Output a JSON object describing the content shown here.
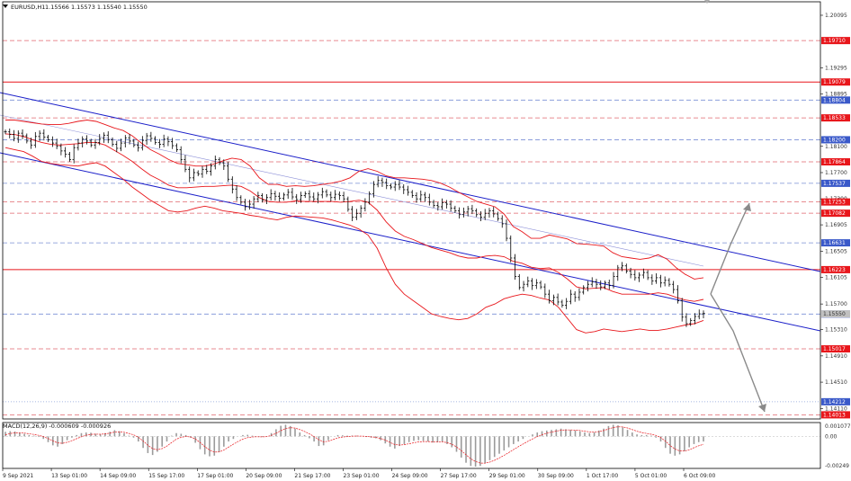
{
  "chart_header": {
    "symbol_label": "EURUSD,H1",
    "ohlc_text": "1.15566 1.15573 1.15540 1.15550"
  },
  "macd_header": {
    "label": "MACD(12,26,9) -0.000609 -0.000926"
  },
  "colors": {
    "background": "#ffffff",
    "candle": "#000000",
    "bollinger": "#e8161b",
    "channel": "#1b1fc9",
    "resistance_dash": "#e0666d",
    "support_dash": "#7a8fd6",
    "solid_level": "#e8161b",
    "projection_arrow": "#8a8a8a",
    "macd_hist": "#9b9b9b",
    "macd_signal": "#e8161b"
  },
  "chart_data": [
    {
      "type": "candlestick",
      "title": "EURUSD,H1",
      "ylim": [
        1.1395,
        1.203
      ],
      "y_ticks": [
        "1.20095",
        "1.19710",
        "1.19295",
        "1.19079",
        "1.18895",
        "1.18533",
        "1.18200",
        "1.18100",
        "1.17864",
        "1.17700",
        "1.17537",
        "1.17300",
        "1.17253",
        "1.17082",
        "1.16905",
        "1.16631",
        "1.16505",
        "1.16223",
        "1.16105",
        "1.15700",
        "1.15547",
        "1.15310",
        "1.15017",
        "1.14910",
        "1.14510",
        "1.14212",
        "1.14110",
        "1.14013"
      ],
      "x_tick_labels": [
        "9 Sep 2021",
        "13 Sep 01:00",
        "14 Sep 09:00",
        "15 Sep 17:00",
        "17 Sep 01:00",
        "20 Sep 09:00",
        "21 Sep 17:00",
        "23 Sep 01:00",
        "24 Sep 09:00",
        "27 Sep 17:00",
        "29 Sep 01:00",
        "30 Sep 09:00",
        "1 Oct 17:00",
        "5 Oct 01:00",
        "6 Oct 09:00"
      ],
      "series_close": [
        1.1832,
        1.1828,
        1.1822,
        1.183,
        1.1826,
        1.1818,
        1.1812,
        1.1825,
        1.183,
        1.1824,
        1.182,
        1.1815,
        1.181,
        1.1803,
        1.1798,
        1.179,
        1.1808,
        1.1815,
        1.1821,
        1.1818,
        1.1812,
        1.1816,
        1.1822,
        1.1827,
        1.182,
        1.1813,
        1.1807,
        1.1815,
        1.1823,
        1.1818,
        1.1812,
        1.1808,
        1.1819,
        1.1826,
        1.1822,
        1.1816,
        1.1813,
        1.1821,
        1.1817,
        1.1811,
        1.1805,
        1.179,
        1.1775,
        1.1762,
        1.177,
        1.1768,
        1.1775,
        1.1772,
        1.178,
        1.179,
        1.1785,
        1.178,
        1.176,
        1.1745,
        1.1732,
        1.1725,
        1.1718,
        1.1722,
        1.173,
        1.1735,
        1.1728,
        1.1732,
        1.1738,
        1.1734,
        1.1731,
        1.1736,
        1.174,
        1.1733,
        1.1729,
        1.1735,
        1.1738,
        1.1733,
        1.173,
        1.1736,
        1.1741,
        1.1736,
        1.1732,
        1.1737,
        1.1735,
        1.173,
        1.1714,
        1.1702,
        1.1708,
        1.1716,
        1.1725,
        1.1738,
        1.1752,
        1.1758,
        1.1755,
        1.175,
        1.1748,
        1.1752,
        1.1748,
        1.1744,
        1.174,
        1.1735,
        1.173,
        1.1736,
        1.1732,
        1.1725,
        1.172,
        1.1718,
        1.1724,
        1.1722,
        1.1716,
        1.1712,
        1.1706,
        1.171,
        1.1715,
        1.1712,
        1.1706,
        1.1702,
        1.1708,
        1.1712,
        1.1707,
        1.17,
        1.1692,
        1.167,
        1.164,
        1.1612,
        1.1595,
        1.16,
        1.1605,
        1.1598,
        1.1602,
        1.1596,
        1.1585,
        1.1575,
        1.158,
        1.1573,
        1.1568,
        1.1574,
        1.1585,
        1.158,
        1.1588,
        1.1595,
        1.16,
        1.1604,
        1.16,
        1.1596,
        1.1602,
        1.1598,
        1.1612,
        1.1625,
        1.1628,
        1.162,
        1.1615,
        1.161,
        1.1614,
        1.1618,
        1.161,
        1.1605,
        1.161,
        1.1602,
        1.1606,
        1.16,
        1.1592,
        1.1575,
        1.155,
        1.154,
        1.1545,
        1.1551,
        1.1555,
        1.1556
      ],
      "bollinger_upper": [
        1.185,
        1.185,
        1.1848,
        1.1846,
        1.1844,
        1.1843,
        1.1843,
        1.1845,
        1.1848,
        1.185,
        1.1848,
        1.1843,
        1.1838,
        1.1834,
        1.1826,
        1.1815,
        1.1805,
        1.1798,
        1.179,
        1.1784,
        1.1782,
        1.178,
        1.178,
        1.1783,
        1.1788,
        1.1792,
        1.179,
        1.178,
        1.1762,
        1.1752,
        1.1752,
        1.1749,
        1.175,
        1.1749,
        1.175,
        1.1752,
        1.1754,
        1.1757,
        1.1762,
        1.1772,
        1.1776,
        1.1772,
        1.1765,
        1.1762,
        1.1762,
        1.1761,
        1.176,
        1.1758,
        1.1754,
        1.1748,
        1.174,
        1.1733,
        1.1726,
        1.1722,
        1.1718,
        1.1707,
        1.1688,
        1.168,
        1.167,
        1.167,
        1.1675,
        1.1672,
        1.1669,
        1.1662,
        1.1661,
        1.166,
        1.1658,
        1.1648,
        1.1642,
        1.164,
        1.1638,
        1.164,
        1.1645,
        1.1638,
        1.1625,
        1.1615,
        1.1608,
        1.161
      ],
      "bollinger_lower": [
        1.1808,
        1.1805,
        1.1802,
        1.1795,
        1.1787,
        1.1784,
        1.1782,
        1.1781,
        1.178,
        1.1783,
        1.1785,
        1.178,
        1.177,
        1.176,
        1.1748,
        1.1738,
        1.1728,
        1.172,
        1.1712,
        1.171,
        1.1712,
        1.1716,
        1.1719,
        1.1716,
        1.1712,
        1.171,
        1.1708,
        1.1705,
        1.1703,
        1.17,
        1.1698,
        1.1702,
        1.1704,
        1.1703,
        1.1702,
        1.1701,
        1.1698,
        1.1694,
        1.169,
        1.1684,
        1.1675,
        1.1655,
        1.1625,
        1.16,
        1.1585,
        1.1575,
        1.1565,
        1.1555,
        1.1551,
        1.1548,
        1.1546,
        1.1548,
        1.1555,
        1.1565,
        1.157,
        1.1578,
        1.1582,
        1.1585,
        1.1583,
        1.1579,
        1.1576,
        1.1565,
        1.1548,
        1.1531,
        1.1526,
        1.1528,
        1.1532,
        1.153,
        1.1528,
        1.153,
        1.1532,
        1.153,
        1.153,
        1.1532,
        1.1535,
        1.1538,
        1.154,
        1.1545
      ],
      "bollinger_mid": [
        1.1829,
        1.1828,
        1.1825,
        1.182,
        1.1816,
        1.1813,
        1.1812,
        1.1813,
        1.1814,
        1.1816,
        1.1816,
        1.1812,
        1.1804,
        1.1796,
        1.1787,
        1.1776,
        1.1766,
        1.1759,
        1.1751,
        1.1747,
        1.1747,
        1.1748,
        1.1749,
        1.1749,
        1.175,
        1.1751,
        1.1749,
        1.1742,
        1.1732,
        1.1726,
        1.1725,
        1.1725,
        1.1727,
        1.1726,
        1.1726,
        1.1726,
        1.1726,
        1.1725,
        1.1726,
        1.1728,
        1.1725,
        1.1713,
        1.1695,
        1.1681,
        1.1673,
        1.1668,
        1.1662,
        1.1656,
        1.1652,
        1.1648,
        1.1643,
        1.164,
        1.164,
        1.1643,
        1.1644,
        1.1642,
        1.1635,
        1.1632,
        1.1626,
        1.1624,
        1.1625,
        1.1618,
        1.1608,
        1.1596,
        1.1593,
        1.1594,
        1.1595,
        1.1589,
        1.1585,
        1.1585,
        1.1585,
        1.1585,
        1.1587,
        1.1585,
        1.158,
        1.1576,
        1.1574,
        1.1577
      ],
      "levels": [
        {
          "value": 1.1971,
          "label": "1.19710",
          "style": "red-dash"
        },
        {
          "value": 1.19079,
          "label": "1.19079",
          "style": "red-solid"
        },
        {
          "value": 1.18804,
          "label": "1.18804",
          "style": "blue-dash"
        },
        {
          "value": 1.18533,
          "label": "1.18533",
          "style": "red-dash"
        },
        {
          "value": 1.182,
          "label": "1.18200",
          "style": "blue-dash"
        },
        {
          "value": 1.17864,
          "label": "1.17864",
          "style": "red-dash"
        },
        {
          "value": 1.17537,
          "label": "1.17537",
          "style": "blue-dash"
        },
        {
          "value": 1.17253,
          "label": "1.17253",
          "style": "red-dash"
        },
        {
          "value": 1.17082,
          "label": "1.17082",
          "style": "red-dash"
        },
        {
          "value": 1.16631,
          "label": "1.16631",
          "style": "blue-dash"
        },
        {
          "value": 1.16223,
          "label": "1.16223",
          "style": "red-solid"
        },
        {
          "value": 1.15547,
          "label": "1.15547",
          "style": "blue-dash"
        },
        {
          "value": 1.15017,
          "label": "1.15017",
          "style": "red-dash"
        },
        {
          "value": 1.14212,
          "label": "1.14212",
          "style": "blue-dot"
        },
        {
          "value": 1.14013,
          "label": "1.14013",
          "style": "red-dash"
        }
      ],
      "current_price": 1.1555
    },
    {
      "type": "bar",
      "title": "MACD(12,26,9)",
      "ylim": [
        -0.00249,
        0.00107
      ],
      "y_ticks": [
        "0.001077",
        "0.00",
        "-0.00249"
      ],
      "histogram": [
        0.00035,
        0.0004,
        0.00038,
        0.0003,
        0.0002,
        0.0001,
        5e-05,
        -5e-05,
        -0.0002,
        -0.00045,
        -0.0007,
        -0.0008,
        -0.0006,
        -0.0003,
        -0.0001,
        0.0001,
        0.00025,
        0.0003,
        0.00028,
        0.0002,
        0.00015,
        0.00025,
        0.00035,
        0.00048,
        0.0004,
        0.00025,
        5e-05,
        -0.0001,
        -0.0004,
        -0.0009,
        -0.0013,
        -0.00145,
        -0.0012,
        -0.0008,
        -0.0004,
        5e-05,
        0.00025,
        0.0002,
        0.0001,
        -0.0001,
        -0.0005,
        -0.001,
        -0.0014,
        -0.00155,
        -0.0015,
        -0.0012,
        -0.0008,
        -0.0004,
        -0.0002,
        0.0,
        0.0001,
        0.00012,
        5e-05,
        0.0,
        -5e-05,
        0.0,
        0.00025,
        0.00055,
        0.00082,
        0.0009,
        0.0008,
        0.0006,
        0.0003,
        0.0001,
        -0.00015,
        -0.0004,
        -0.00075,
        -0.0007,
        -0.0003,
        0.0,
        0.0001,
        8e-05,
        5e-05,
        6e-05,
        5e-05,
        0.0,
        -5e-05,
        -0.0001,
        -0.00015,
        -0.0003,
        -0.00055,
        -0.0008,
        -0.00095,
        -0.00075,
        -0.0006,
        -0.00045,
        -0.00035,
        -0.0003,
        -0.00035,
        -0.0004,
        -0.00048,
        -0.00045,
        -0.0004,
        -0.0006,
        -0.00085,
        -0.0012,
        -0.00165,
        -0.00205,
        -0.0023,
        -0.00235,
        -0.0023,
        -0.0021,
        -0.00185,
        -0.0016,
        -0.00135,
        -0.0011,
        -0.00085,
        -0.0006,
        -0.0004,
        -0.0002,
        0.0,
        0.00015,
        0.0003,
        0.0004,
        0.00045,
        0.0005,
        0.00055,
        0.0006,
        0.00055,
        0.0005,
        0.00045,
        0.0004,
        0.0003,
        0.00025,
        0.0003,
        0.00045,
        0.0006,
        0.0008,
        0.0009,
        0.00085,
        0.0007,
        0.0005,
        0.0003,
        0.00015,
        0.0001,
        0.0001,
        5e-05,
        -0.0001,
        -0.0004,
        -0.0009,
        -0.00135,
        -0.0015,
        -0.0014,
        -0.00115,
        -0.00085,
        -0.0006,
        -0.00045,
        -0.0004
      ]
    }
  ]
}
